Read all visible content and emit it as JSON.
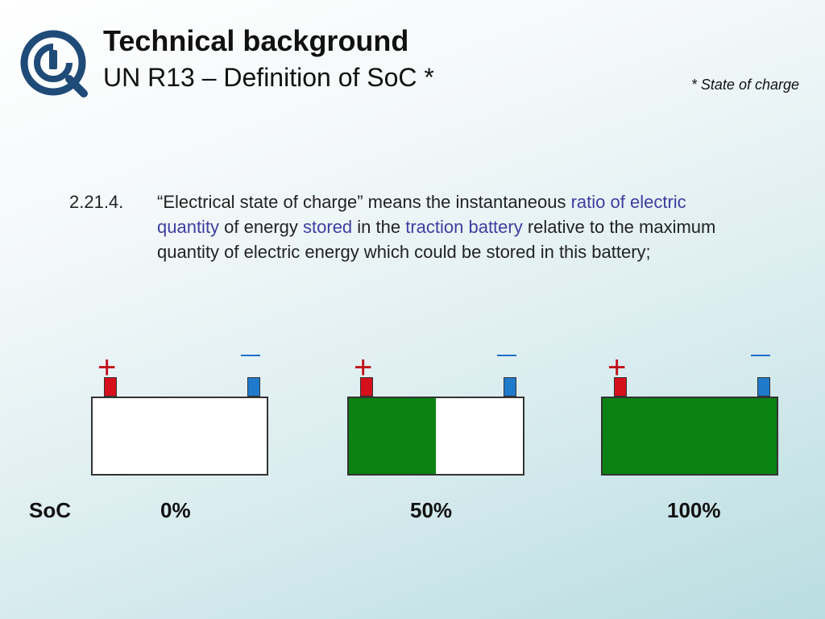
{
  "header": {
    "title": "Technical background",
    "subtitle": "UN R13 – Definition of SoC *",
    "footnote": "* State of charge"
  },
  "definition": {
    "number": "2.21.4.",
    "segments": [
      {
        "text": "“Electrical state of charge” means the instantaneous ",
        "highlight": false
      },
      {
        "text": "ratio of electric quantity",
        "highlight": true
      },
      {
        "text": " of energy ",
        "highlight": false
      },
      {
        "text": "stored",
        "highlight": true
      },
      {
        "text": " in the ",
        "highlight": false
      },
      {
        "text": "traction battery",
        "highlight": true
      },
      {
        "text": " relative to the maximum quantity of electric energy which could be stored in this battery;",
        "highlight": false
      }
    ]
  },
  "batteries": [
    {
      "soc_fraction": 0.0,
      "label": "0%",
      "plus": "+"
    },
    {
      "soc_fraction": 0.5,
      "label": "50%",
      "plus": "+"
    },
    {
      "soc_fraction": 1.0,
      "label": "100%",
      "plus": "+"
    }
  ],
  "soc_row_label": "SoC",
  "colors": {
    "highlight": "#3c3ea0",
    "fill": "#0a8213",
    "positive_terminal": "#d5101c",
    "negative_terminal": "#1f7acc",
    "logo": "#1f4b78"
  },
  "icons": {
    "logo": "magnifier-logo-icon"
  }
}
